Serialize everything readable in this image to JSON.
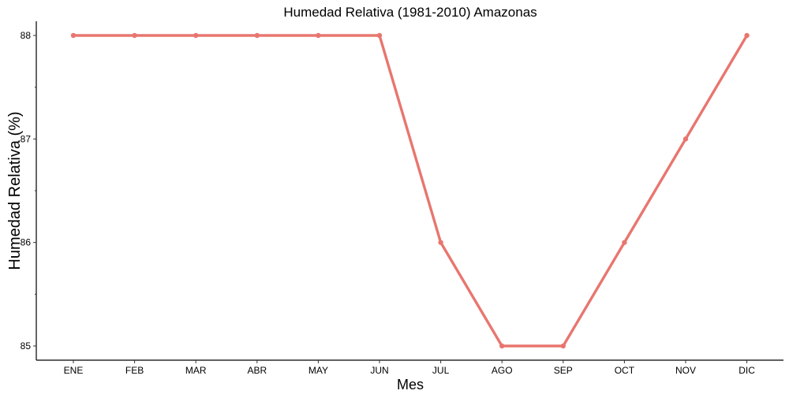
{
  "chart_data": {
    "type": "line",
    "title": "Humedad Relativa (1981-2010)  Amazonas",
    "xlabel": "Mes",
    "ylabel": "Humedad Relativa  (%)",
    "categories": [
      "ENE",
      "FEB",
      "MAR",
      "ABR",
      "MAY",
      "JUN",
      "JUL",
      "AGO",
      "SEP",
      "OCT",
      "NOV",
      "DIC"
    ],
    "series": [
      {
        "values": [
          88,
          88,
          88,
          88,
          88,
          88,
          86,
          85,
          85,
          86,
          87,
          88
        ]
      }
    ],
    "y_ticks": [
      85,
      86,
      87,
      88
    ],
    "ylim": [
      84.85,
      88.15
    ],
    "grid": false,
    "line_color": "#E8766F"
  }
}
